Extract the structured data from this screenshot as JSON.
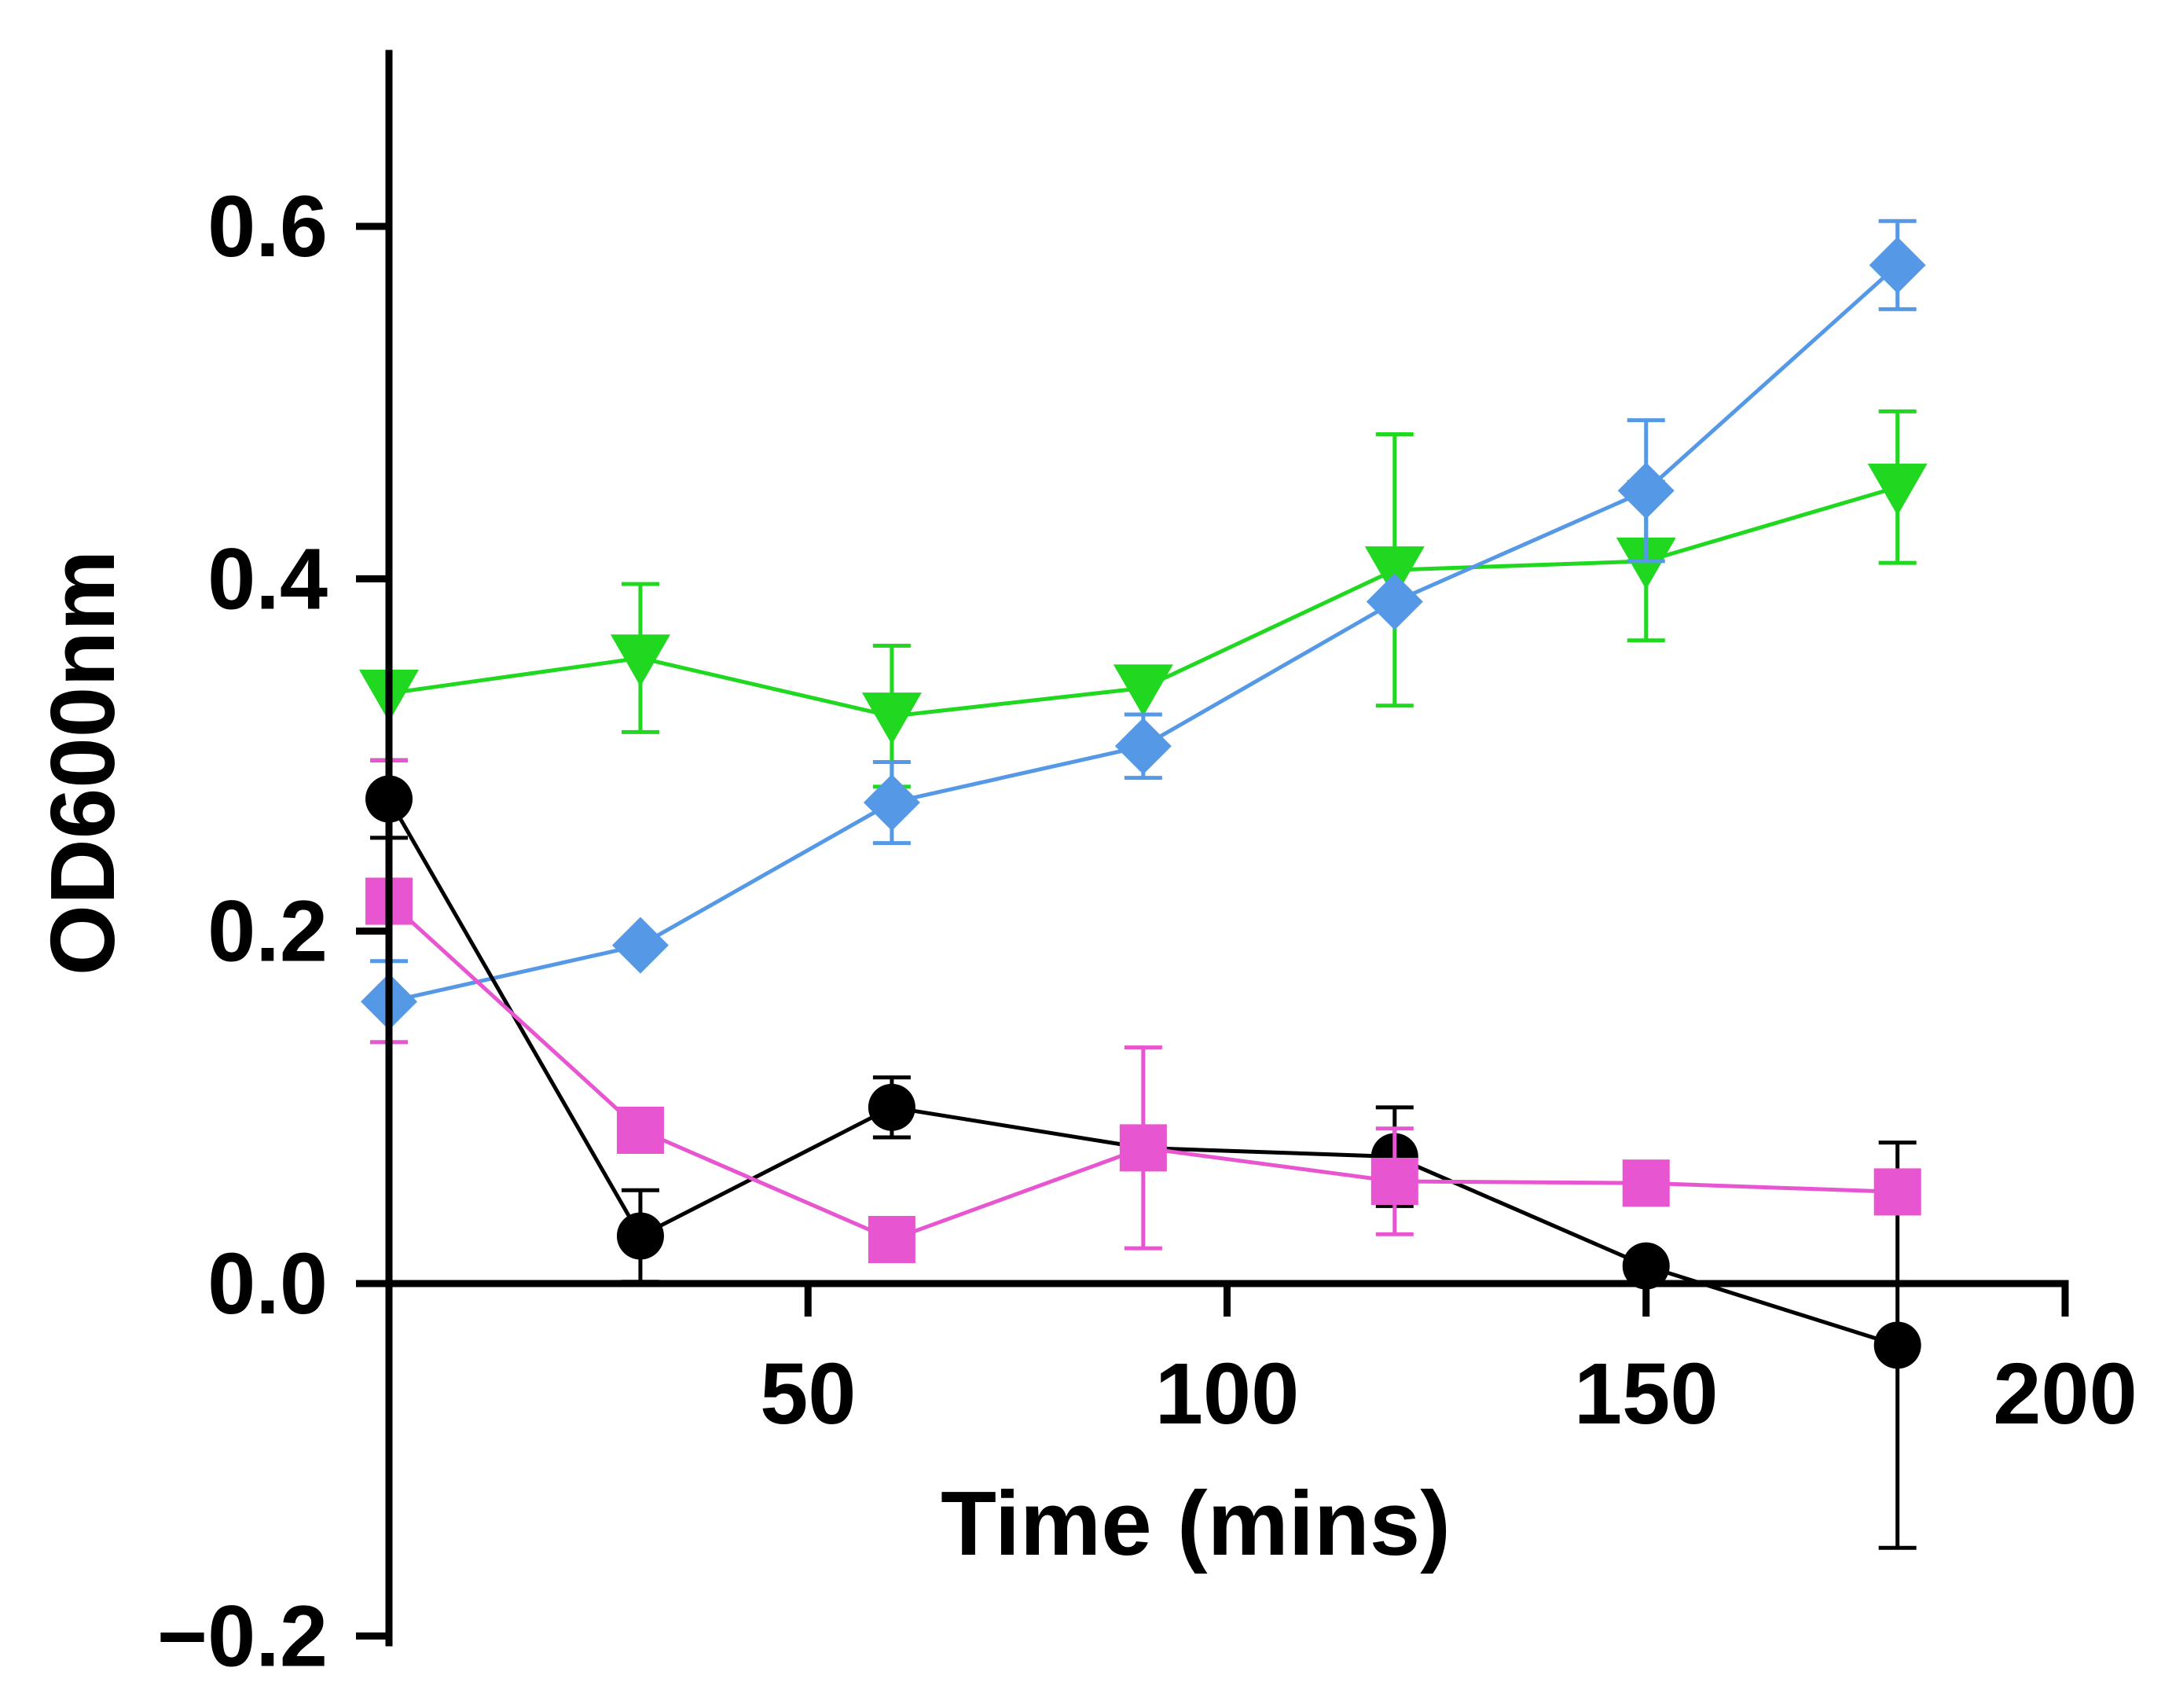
{
  "chart_data": {
    "type": "line",
    "title": "",
    "xlabel": "Time (mins)",
    "ylabel": "OD600nm",
    "xlim": [
      0,
      200
    ],
    "ylim": [
      -0.2,
      0.7
    ],
    "x_ticks": [
      50,
      100,
      150,
      200
    ],
    "x_tick_labels": [
      "50",
      "100",
      "150",
      "200"
    ],
    "y_ticks": [
      -0.2,
      0.0,
      0.2,
      0.4,
      0.6
    ],
    "y_tick_labels": [
      "−0.2",
      "0.0",
      "0.2",
      "0.4",
      "0.6"
    ],
    "grid": false,
    "legend": "none",
    "series": [
      {
        "name": "green triangles",
        "color": "#1fd81f",
        "marker": "triangle-down",
        "x": [
          0,
          30,
          60,
          90,
          120,
          150,
          180
        ],
        "values": [
          0.335,
          0.355,
          0.322,
          0.338,
          0.405,
          0.41,
          0.452
        ],
        "errors": [
          0.0,
          0.042,
          0.04,
          0.0,
          0.077,
          0.045,
          0.043
        ]
      },
      {
        "name": "blue diamonds",
        "color": "#5599e6",
        "marker": "diamond",
        "x": [
          0,
          30,
          60,
          90,
          120,
          150,
          180
        ],
        "values": [
          0.16,
          0.192,
          0.273,
          0.305,
          0.387,
          0.45,
          0.578
        ],
        "errors": [
          0.023,
          0.0,
          0.023,
          0.018,
          0.0,
          0.04,
          0.025
        ]
      },
      {
        "name": "black circles",
        "color": "#000000",
        "marker": "circle",
        "x": [
          0,
          30,
          60,
          90,
          120,
          150,
          180
        ],
        "values": [
          0.275,
          0.027,
          0.1,
          0.077,
          0.072,
          0.01,
          -0.035
        ],
        "errors": [
          0.022,
          0.026,
          0.017,
          0.0,
          0.028,
          0.0,
          0.115
        ]
      },
      {
        "name": "pink squares",
        "color": "#e855d0",
        "marker": "square",
        "x": [
          0,
          30,
          60,
          90,
          120,
          150,
          180
        ],
        "values": [
          0.217,
          0.087,
          0.025,
          0.077,
          0.058,
          0.057,
          0.052
        ],
        "errors": [
          0.08,
          0.0,
          0.0,
          0.057,
          0.03,
          0.0,
          0.0
        ]
      }
    ]
  }
}
